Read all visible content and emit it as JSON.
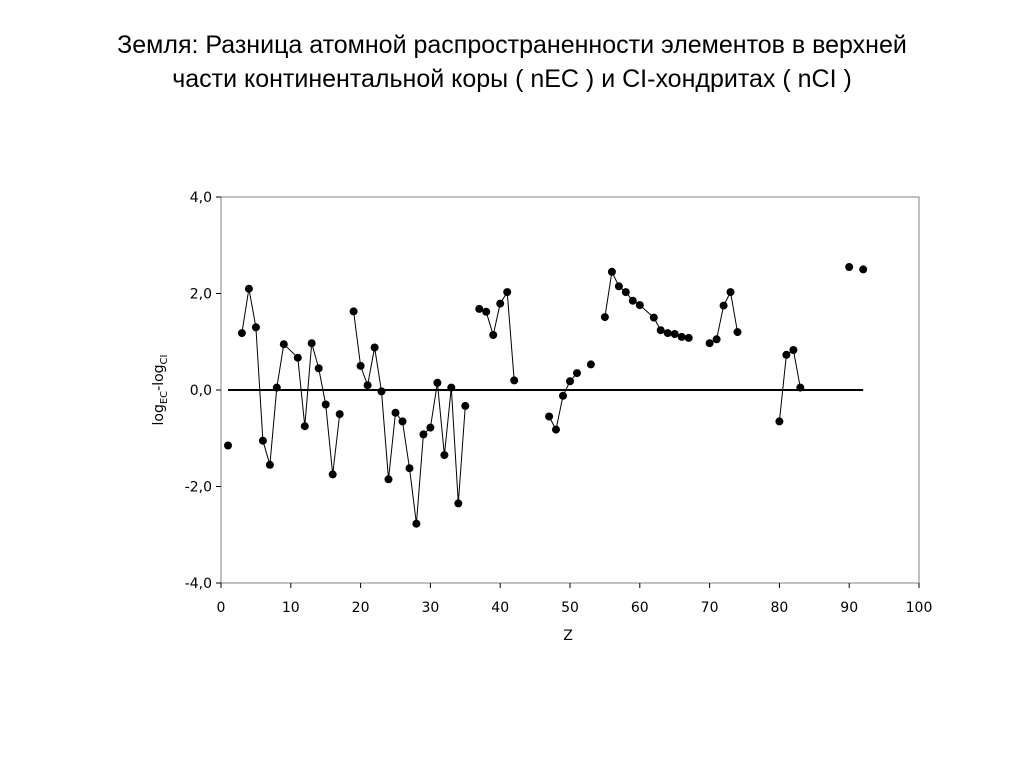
{
  "title": {
    "line1": "Земля: Разница атомной распространенности элементов в верхней",
    "line2": "части континентальной коры ( nEC ) и CI-хондритах ( nCI )"
  },
  "chart_data": {
    "type": "scatter",
    "xlabel": "Z",
    "ylabel": "lognEC-lognCI",
    "ylabel_parts": {
      "a": "log",
      "a_sub": "EC",
      "b": "-log",
      "b_sub": "CI"
    },
    "xlim": [
      0,
      100
    ],
    "ylim": [
      -4,
      4
    ],
    "x_ticks": [
      "0",
      "10",
      "20",
      "30",
      "40",
      "50",
      "60",
      "70",
      "80",
      "90",
      "100"
    ],
    "x_tick_values": [
      0,
      10,
      20,
      30,
      40,
      50,
      60,
      70,
      80,
      90,
      100
    ],
    "y_ticks": [
      "4,0",
      "2,0",
      "0,0",
      "-2,0",
      "-4,0"
    ],
    "y_tick_values": [
      4,
      2,
      0,
      -2,
      -4
    ],
    "zero_line": {
      "from": 1,
      "to": 92
    },
    "grid": false,
    "legend": "none",
    "colors": {
      "marker": "#000000",
      "line": "#000000"
    },
    "segments": [
      [
        [
          1,
          -1.15
        ]
      ],
      [
        [
          3,
          1.18
        ],
        [
          4,
          2.1
        ],
        [
          5,
          1.3
        ],
        [
          6,
          -1.05
        ],
        [
          7,
          -1.55
        ],
        [
          8,
          0.05
        ],
        [
          9,
          0.95
        ],
        [
          11,
          0.67
        ],
        [
          12,
          -0.75
        ],
        [
          13,
          0.97
        ],
        [
          14,
          0.45
        ],
        [
          15,
          -0.3
        ],
        [
          16,
          -1.75
        ],
        [
          17,
          -0.5
        ]
      ],
      [
        [
          19,
          1.63
        ],
        [
          20,
          0.5
        ],
        [
          21,
          0.1
        ],
        [
          22,
          0.88
        ],
        [
          23,
          -0.03
        ],
        [
          24,
          -1.85
        ],
        [
          25,
          -0.47
        ],
        [
          26,
          -0.65
        ],
        [
          27,
          -1.62
        ],
        [
          28,
          -2.77
        ],
        [
          29,
          -0.92
        ],
        [
          30,
          -0.78
        ],
        [
          31,
          0.15
        ],
        [
          32,
          -1.35
        ],
        [
          33,
          0.05
        ],
        [
          34,
          -2.35
        ],
        [
          35,
          -0.33
        ]
      ],
      [
        [
          37,
          1.68
        ],
        [
          38,
          1.62
        ],
        [
          39,
          1.14
        ],
        [
          40,
          1.79
        ],
        [
          41,
          2.03
        ],
        [
          42,
          0.2
        ]
      ],
      [
        [
          47,
          -0.55
        ],
        [
          48,
          -0.82
        ],
        [
          49,
          -0.12
        ],
        [
          50,
          0.18
        ],
        [
          51,
          0.35
        ]
      ],
      [
        [
          53,
          0.53
        ]
      ],
      [
        [
          55,
          1.51
        ],
        [
          56,
          2.45
        ],
        [
          57,
          2.15
        ],
        [
          58,
          2.03
        ],
        [
          59,
          1.85
        ],
        [
          60,
          1.76
        ],
        [
          62,
          1.5
        ],
        [
          63,
          1.24
        ],
        [
          64,
          1.18
        ],
        [
          65,
          1.16
        ],
        [
          66,
          1.1
        ],
        [
          67,
          1.08
        ]
      ],
      [
        [
          70,
          0.97
        ],
        [
          71,
          1.05
        ],
        [
          72,
          1.75
        ],
        [
          73,
          2.03
        ],
        [
          74,
          1.2
        ]
      ],
      [
        [
          80,
          -0.65
        ],
        [
          81,
          0.73
        ],
        [
          82,
          0.83
        ],
        [
          83,
          0.05
        ]
      ],
      [
        [
          90,
          2.55
        ]
      ],
      [
        [
          92,
          2.5
        ]
      ]
    ]
  }
}
